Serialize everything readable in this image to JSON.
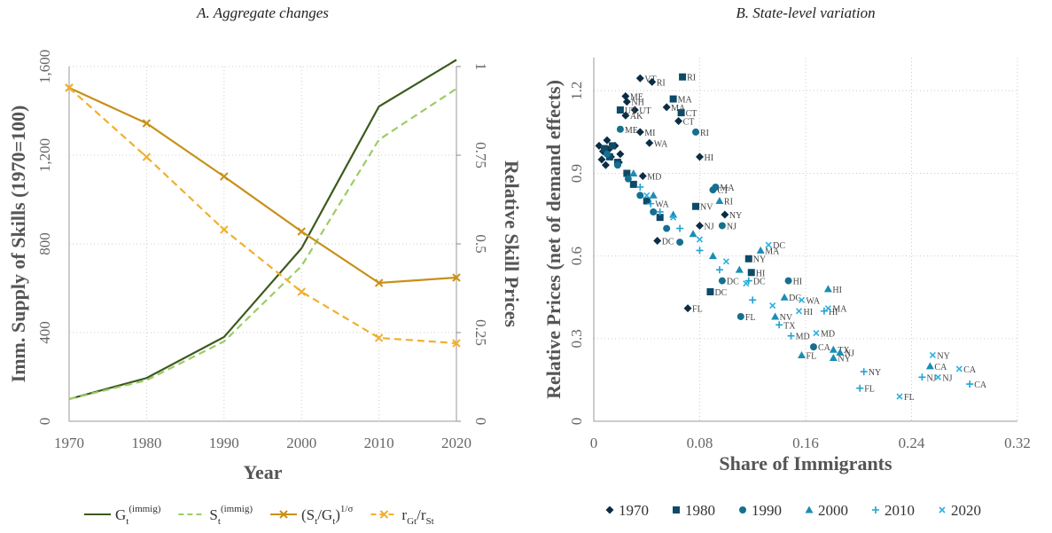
{
  "chart_data": [
    {
      "type": "line",
      "title": "A. Aggregate changes",
      "x_label": "Year",
      "y_label": "Imm. Supply of Skills (1970=100)",
      "y2_label": "Relative Skill Prices",
      "x": [
        1970,
        1980,
        1990,
        2000,
        2010,
        2020
      ],
      "xlim": [
        1970,
        2020
      ],
      "xticks": [
        1970,
        1980,
        1990,
        2000,
        2010,
        2020
      ],
      "ylim": [
        0,
        1600
      ],
      "yticks": [
        0,
        400,
        800,
        {
          "value": 1200,
          "label": "1,200"
        },
        {
          "value": 1600,
          "label": "1,600"
        }
      ],
      "y2lim": [
        0,
        1
      ],
      "y2ticks": [
        0,
        0.25,
        0.5,
        0.75,
        1
      ],
      "grid": true,
      "series": [
        {
          "name": "G",
          "name_sub": "t",
          "name_sup": "(immig)",
          "color": "#3d5a1e",
          "dash": "solid",
          "values": [
            100,
            195,
            380,
            780,
            1420,
            1630
          ]
        },
        {
          "name": "S",
          "name_sub": "t",
          "name_sup": "(immig)",
          "color": "#9ccc65",
          "dash": "dashed",
          "values": [
            100,
            185,
            360,
            700,
            1270,
            1500
          ]
        },
        {
          "name": "(S",
          "name_sub": "t",
          "name_mid": "/G",
          "name_sub2": "t",
          "name_end": ")",
          "name_sup": "1/σ",
          "color": "#c8901a",
          "dash": "solid",
          "marker": "x",
          "axis": "y2",
          "values": [
            0.94,
            0.84,
            0.69,
            0.535,
            0.39,
            0.405
          ]
        },
        {
          "name": "r",
          "name_sub": "Gt",
          "name_mid": "/r",
          "name_sub2": "St",
          "color": "#f0b030",
          "dash": "dashed",
          "marker": "x",
          "axis": "y2",
          "values": [
            0.94,
            0.745,
            0.54,
            0.365,
            0.235,
            0.22
          ]
        }
      ]
    },
    {
      "type": "scatter",
      "title": "B. State-level variation",
      "x_label": "Share of Immigrants",
      "y_label": "Relative Prices (net of demand effects)",
      "xlim": [
        0,
        0.32
      ],
      "xticks": [
        0,
        0.08,
        0.16,
        0.24,
        0.32
      ],
      "ylim": [
        0,
        1.32
      ],
      "yticks": [
        0,
        0.3,
        0.6,
        0.9,
        1.2
      ],
      "grid": true,
      "series": [
        {
          "name": "1970",
          "color": "#0b2d45",
          "marker": "diamond",
          "x": [
            0.035,
            0.044,
            0.024,
            0.025,
            0.031,
            0.024,
            0.055,
            0.064,
            0.035,
            0.08,
            0.099,
            0.08,
            0.048,
            0.071,
            0.042,
            0.037,
            0.004,
            0.007,
            0.01,
            0.013,
            0.016,
            0.019,
            0.006,
            0.012,
            0.02,
            0.009
          ],
          "values": [
            1.245,
            1.232,
            1.18,
            1.16,
            1.13,
            1.11,
            1.14,
            1.09,
            1.05,
            0.96,
            0.75,
            0.71,
            0.655,
            0.41,
            1.01,
            0.89,
            1.0,
            0.98,
            1.02,
            0.96,
            1.0,
            0.94,
            0.95,
            0.99,
            0.97,
            0.93
          ],
          "labels": [
            "VT",
            "RI",
            "ME",
            "NH",
            "UT",
            "AK",
            "MA",
            "CT",
            "MI",
            "HI",
            "NY",
            "NJ",
            "DC",
            "FL",
            "WA",
            "MD",
            null,
            null,
            null,
            null,
            null,
            null,
            null,
            null,
            null,
            null
          ]
        },
        {
          "name": "1980",
          "color": "#0d4a68",
          "marker": "square",
          "x": [
            0.067,
            0.06,
            0.066,
            0.02,
            0.077,
            0.119,
            0.117,
            0.088,
            0.008,
            0.012,
            0.018,
            0.025,
            0.03,
            0.04,
            0.05,
            0.014
          ],
          "values": [
            1.25,
            1.17,
            1.12,
            1.13,
            0.78,
            0.54,
            0.59,
            0.47,
            0.99,
            0.96,
            0.94,
            0.9,
            0.86,
            0.8,
            0.74,
            1.0
          ],
          "labels": [
            "RI",
            "MA",
            "CT",
            "UT",
            "NV",
            "HI",
            "NY",
            "DC",
            null,
            null,
            null,
            null,
            null,
            null,
            null,
            null
          ]
        },
        {
          "name": "1990",
          "color": "#15708f",
          "marker": "circle",
          "x": [
            0.02,
            0.077,
            0.092,
            0.09,
            0.097,
            0.147,
            0.097,
            0.166,
            0.111,
            0.01,
            0.018,
            0.026,
            0.035,
            0.045,
            0.055,
            0.065
          ],
          "values": [
            1.06,
            1.05,
            0.85,
            0.84,
            0.71,
            0.51,
            0.51,
            0.27,
            0.38,
            0.97,
            0.93,
            0.88,
            0.82,
            0.76,
            0.7,
            0.65
          ],
          "labels": [
            "ME",
            "RI",
            "MA",
            "CT",
            "NJ",
            "HI",
            "DC",
            "CA",
            "FL",
            null,
            null,
            null,
            null,
            null,
            null,
            null
          ]
        },
        {
          "name": "2000",
          "color": "#1a8db5",
          "marker": "triangle",
          "x": [
            0.095,
            0.126,
            0.177,
            0.144,
            0.181,
            0.254,
            0.157,
            0.181,
            0.186,
            0.137,
            0.03,
            0.045,
            0.06,
            0.075,
            0.09,
            0.11
          ],
          "values": [
            0.8,
            0.62,
            0.48,
            0.45,
            0.23,
            0.2,
            0.24,
            0.26,
            0.25,
            0.38,
            0.9,
            0.82,
            0.75,
            0.68,
            0.6,
            0.55
          ],
          "labels": [
            "RI",
            "MA",
            "HI",
            "DC",
            "NY",
            "CA",
            "FL",
            "TX",
            "NJ",
            "NV",
            null,
            null,
            null,
            null,
            null,
            null
          ]
        },
        {
          "name": "2010",
          "color": "#22a2d2",
          "marker": "plus",
          "x": [
            0.201,
            0.248,
            0.204,
            0.284,
            0.149,
            0.117,
            0.174,
            0.14,
            0.043,
            0.035,
            0.05,
            0.065,
            0.08,
            0.095,
            0.12
          ],
          "values": [
            0.12,
            0.16,
            0.18,
            0.135,
            0.31,
            0.51,
            0.4,
            0.35,
            0.79,
            0.85,
            0.76,
            0.7,
            0.62,
            0.55,
            0.44
          ],
          "labels": [
            "FL",
            "NJ",
            "NY",
            "CA",
            "MD",
            "DC",
            "HI",
            "TX",
            "WA",
            null,
            null,
            null,
            null,
            null,
            null
          ]
        },
        {
          "name": "2020",
          "color": "#2bb0e0",
          "marker": "x",
          "x": [
            0.132,
            0.276,
            0.256,
            0.26,
            0.231,
            0.168,
            0.177,
            0.157,
            0.155,
            0.04,
            0.06,
            0.08,
            0.1,
            0.115,
            0.135
          ],
          "values": [
            0.64,
            0.19,
            0.24,
            0.16,
            0.09,
            0.32,
            0.41,
            0.44,
            0.4,
            0.82,
            0.74,
            0.66,
            0.58,
            0.5,
            0.42
          ],
          "labels": [
            "DC",
            "CA",
            "NY",
            "NJ",
            "FL",
            "MD",
            "MA",
            "WA",
            "HI",
            null,
            null,
            null,
            null,
            null,
            null
          ]
        }
      ]
    }
  ]
}
